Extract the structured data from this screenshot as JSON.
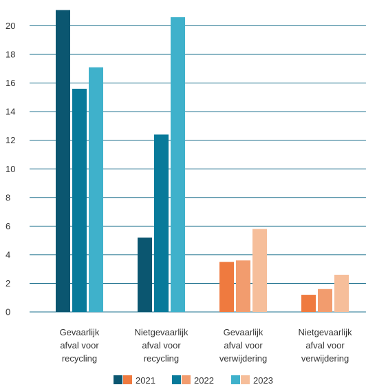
{
  "chart_data": {
    "type": "bar",
    "categories": [
      [
        "Gevaarlijk",
        "afval voor",
        "recycling"
      ],
      [
        "Nietgevaarlijk",
        "afval voor",
        "recycling"
      ],
      [
        "Gevaarlijk",
        "afval voor",
        "verwijdering"
      ],
      [
        "Nietgevaarlijk",
        "afval voor",
        "verwijdering"
      ]
    ],
    "series": [
      {
        "name": "2021",
        "values": [
          21.1,
          5.2,
          3.5,
          1.2
        ]
      },
      {
        "name": "2022",
        "values": [
          15.6,
          12.4,
          3.6,
          1.6
        ]
      },
      {
        "name": "2023",
        "values": [
          17.1,
          20.6,
          5.8,
          2.6
        ]
      }
    ],
    "bar_colors": [
      [
        "#0b5670",
        "#087a9a",
        "#3fb1cb"
      ],
      [
        "#0b5670",
        "#087a9a",
        "#3fb1cb"
      ],
      [
        "#ef7a3f",
        "#f29c6e",
        "#f6be9a"
      ],
      [
        "#ef7a3f",
        "#f29c6e",
        "#f6be9a"
      ]
    ],
    "legend": [
      {
        "label": "2021",
        "colors": [
          "#0b5670",
          "#ef7a3f"
        ]
      },
      {
        "label": "2022",
        "colors": [
          "#087a9a",
          "#f29c6e"
        ]
      },
      {
        "label": "2023",
        "colors": [
          "#3fb1cb",
          "#f6be9a"
        ]
      }
    ],
    "y_ticks": [
      "0",
      "2",
      "4",
      "6",
      "8",
      "10",
      "12",
      "14",
      "16",
      "18",
      "20"
    ],
    "ylim": [
      0,
      21
    ],
    "grid": true,
    "grid_color": "#1a6f8c",
    "legend_position": "bottom-center",
    "title": "",
    "xlabel": "",
    "ylabel": ""
  }
}
